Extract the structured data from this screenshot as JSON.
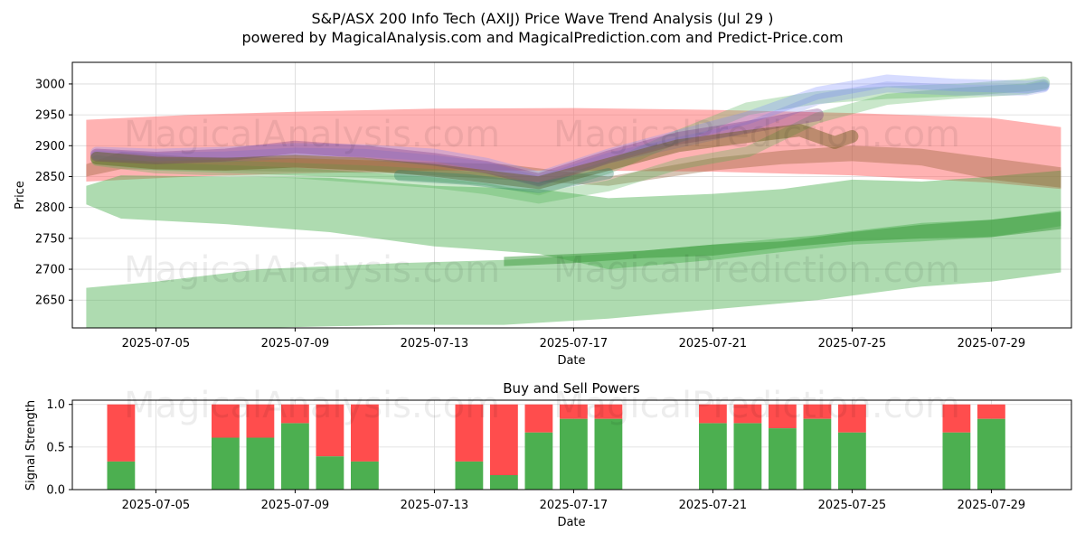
{
  "chart_data": [
    {
      "type": "area",
      "title": "S&P/ASX 200 Info Tech (AXIJ) Price Wave Trend Analysis (Jul 29 )",
      "subtitle": "powered by MagicalAnalysis.com and MagicalPrediction.com and Predict-Price.com",
      "xlabel": "Date",
      "ylabel": "Price",
      "ylim": [
        2605,
        3035
      ],
      "xlim_days": [
        -1.4,
        27.3
      ],
      "x_start_date": "2025-07-04",
      "x_tick_labels": [
        "2025-07-05",
        "2025-07-09",
        "2025-07-13",
        "2025-07-17",
        "2025-07-21",
        "2025-07-25",
        "2025-07-29"
      ],
      "x_tick_days": [
        1,
        5,
        9,
        13,
        17,
        21,
        25
      ],
      "y_ticks": [
        2650,
        2700,
        2750,
        2800,
        2850,
        2900,
        2950,
        3000
      ],
      "grid": true,
      "watermarks": [
        "MagicalAnalysis.com",
        "MagicalPrediction.com"
      ],
      "bands": [
        {
          "name": "red-wide-band",
          "color": "#ff6666",
          "opacity": 0.5,
          "x": [
            -1,
            2,
            5,
            9,
            13,
            17,
            21,
            25,
            27
          ],
          "upper": [
            2942,
            2950,
            2955,
            2960,
            2961,
            2958,
            2953,
            2945,
            2930
          ],
          "lower": [
            2842,
            2850,
            2855,
            2860,
            2860,
            2858,
            2852,
            2840,
            2830
          ]
        },
        {
          "name": "green-upper-band",
          "color": "#4caf50",
          "opacity": 0.45,
          "x": [
            -1,
            0,
            3,
            6,
            9,
            12,
            14,
            17,
            19,
            21,
            23,
            25,
            27
          ],
          "upper": [
            2835,
            2852,
            2850,
            2848,
            2835,
            2830,
            2815,
            2822,
            2830,
            2845,
            2842,
            2850,
            2860
          ],
          "lower": [
            2805,
            2782,
            2773,
            2760,
            2737,
            2725,
            2700,
            2715,
            2728,
            2740,
            2745,
            2752,
            2770
          ]
        },
        {
          "name": "green-lower-band",
          "color": "#4caf50",
          "opacity": 0.45,
          "x": [
            -1,
            1,
            4,
            8,
            11,
            14,
            17,
            20,
            23,
            25,
            27
          ],
          "upper": [
            2670,
            2680,
            2700,
            2710,
            2715,
            2725,
            2740,
            2755,
            2775,
            2780,
            2795
          ],
          "lower": [
            2605,
            2605,
            2605,
            2610,
            2610,
            2620,
            2635,
            2650,
            2672,
            2680,
            2695
          ]
        },
        {
          "name": "green-dark-band",
          "color": "#3a9a3a",
          "opacity": 0.5,
          "x": [
            11,
            13,
            15,
            17,
            19,
            21,
            23,
            25,
            27
          ],
          "upper": [
            2720,
            2725,
            2730,
            2740,
            2745,
            2760,
            2772,
            2780,
            2793
          ],
          "lower": [
            2705,
            2710,
            2718,
            2722,
            2735,
            2745,
            2750,
            2752,
            2765
          ]
        },
        {
          "name": "brown-band",
          "color": "#8b5a2b",
          "opacity": 0.35,
          "x": [
            -1,
            0,
            2,
            5,
            8,
            11,
            14,
            17,
            19,
            21,
            23,
            25,
            27
          ],
          "upper": [
            2870,
            2890,
            2882,
            2880,
            2875,
            2870,
            2850,
            2880,
            2892,
            2900,
            2895,
            2880,
            2865
          ],
          "lower": [
            2850,
            2862,
            2860,
            2858,
            2855,
            2845,
            2835,
            2860,
            2870,
            2875,
            2868,
            2845,
            2832
          ]
        }
      ],
      "wave_lines": [
        {
          "name": "green-wave-1",
          "color": "#66bb6a",
          "opacity": 0.35,
          "width": 14,
          "x": [
            -0.7,
            1,
            3,
            5,
            7,
            9,
            10.5,
            12,
            14,
            16,
            18,
            20,
            22,
            24,
            26,
            26.5
          ],
          "y": [
            2880,
            2870,
            2866,
            2862,
            2858,
            2852,
            2846,
            2830,
            2865,
            2915,
            2960,
            2978,
            2986,
            2990,
            2998,
            3002
          ]
        },
        {
          "name": "green-wave-2",
          "color": "#4caf50",
          "opacity": 0.3,
          "width": 12,
          "x": [
            -0.7,
            1,
            3,
            5,
            7,
            9,
            10.5,
            12,
            14,
            16,
            18,
            20,
            22,
            24,
            26,
            26.5
          ],
          "y": [
            2876,
            2864,
            2860,
            2856,
            2848,
            2840,
            2830,
            2815,
            2835,
            2870,
            2890,
            2945,
            2975,
            2985,
            2992,
            2998
          ]
        },
        {
          "name": "blue-wave-1",
          "color": "#7b8cff",
          "opacity": 0.3,
          "width": 14,
          "x": [
            -0.7,
            1,
            3,
            5,
            7,
            9,
            10.5,
            12,
            14,
            16,
            18,
            20,
            22,
            24,
            26,
            26.5
          ],
          "y": [
            2888,
            2885,
            2888,
            2894,
            2892,
            2885,
            2870,
            2848,
            2885,
            2915,
            2945,
            2985,
            3005,
            2998,
            2995,
            2998
          ]
        },
        {
          "name": "blue-wave-2",
          "color": "#6e7fe6",
          "opacity": 0.25,
          "width": 12,
          "x": [
            -0.7,
            1,
            3,
            5,
            7,
            9,
            10.5,
            12,
            14,
            16,
            18,
            20,
            22,
            24,
            26,
            26.5
          ],
          "y": [
            2884,
            2880,
            2882,
            2888,
            2886,
            2876,
            2865,
            2842,
            2880,
            2905,
            2930,
            2975,
            2995,
            2990,
            2990,
            2995
          ]
        },
        {
          "name": "purple-wave",
          "color": "#7a3a8a",
          "opacity": 0.35,
          "width": 14,
          "x": [
            -0.7,
            1,
            3,
            5,
            7,
            9,
            10.5,
            12,
            14,
            16,
            18,
            20
          ],
          "y": [
            2885,
            2880,
            2885,
            2898,
            2890,
            2878,
            2865,
            2845,
            2882,
            2912,
            2930,
            2950
          ]
        },
        {
          "name": "brown-wave",
          "color": "#6b5a1a",
          "opacity": 0.45,
          "width": 14,
          "x": [
            -0.7,
            1,
            3,
            5,
            7,
            9,
            10.5,
            12,
            14,
            16,
            18,
            19.5,
            20.5,
            21
          ],
          "y": [
            2880,
            2872,
            2870,
            2875,
            2870,
            2860,
            2850,
            2840,
            2870,
            2900,
            2915,
            2925,
            2905,
            2915
          ]
        },
        {
          "name": "teal-wave",
          "color": "#2e7d6a",
          "opacity": 0.35,
          "width": 12,
          "x": [
            8,
            10,
            12,
            14
          ],
          "y": [
            2852,
            2845,
            2832,
            2855
          ]
        }
      ]
    },
    {
      "type": "bar",
      "title": "Buy and Sell Powers",
      "xlabel": "Date",
      "ylabel": "Signal Strength",
      "ylim": [
        0,
        1.05
      ],
      "xlim_days": [
        -1.4,
        27.3
      ],
      "x_start_date": "2025-07-04",
      "x_tick_labels": [
        "2025-07-05",
        "2025-07-09",
        "2025-07-13",
        "2025-07-17",
        "2025-07-21",
        "2025-07-25",
        "2025-07-29"
      ],
      "x_tick_days": [
        1,
        5,
        9,
        13,
        17,
        21,
        25
      ],
      "y_tick_labels": [
        "0.0",
        "0.5",
        "1.0"
      ],
      "y_ticks": [
        0,
        0.5,
        1.0
      ],
      "grid": true,
      "series": [
        {
          "name": "Buy",
          "color": "#4caf50"
        },
        {
          "name": "Sell",
          "color": "#ff4d4d"
        }
      ],
      "bars": [
        {
          "date": "2025-07-04",
          "day": 0,
          "buy": 0.33
        },
        {
          "date": "2025-07-07",
          "day": 3,
          "buy": 0.61
        },
        {
          "date": "2025-07-08",
          "day": 4,
          "buy": 0.61
        },
        {
          "date": "2025-07-09",
          "day": 5,
          "buy": 0.78
        },
        {
          "date": "2025-07-10",
          "day": 6,
          "buy": 0.39
        },
        {
          "date": "2025-07-11",
          "day": 7,
          "buy": 0.33
        },
        {
          "date": "2025-07-14",
          "day": 10,
          "buy": 0.33
        },
        {
          "date": "2025-07-15",
          "day": 11,
          "buy": 0.17
        },
        {
          "date": "2025-07-16",
          "day": 12,
          "buy": 0.67
        },
        {
          "date": "2025-07-17",
          "day": 13,
          "buy": 0.83
        },
        {
          "date": "2025-07-18",
          "day": 14,
          "buy": 0.83
        },
        {
          "date": "2025-07-21",
          "day": 17,
          "buy": 0.78
        },
        {
          "date": "2025-07-22",
          "day": 18,
          "buy": 0.78
        },
        {
          "date": "2025-07-23",
          "day": 19,
          "buy": 0.72
        },
        {
          "date": "2025-07-24",
          "day": 20,
          "buy": 0.83
        },
        {
          "date": "2025-07-25",
          "day": 21,
          "buy": 0.67
        },
        {
          "date": "2025-07-28",
          "day": 24,
          "buy": 0.67
        },
        {
          "date": "2025-07-29",
          "day": 25,
          "buy": 0.83
        }
      ],
      "watermarks": [
        "MagicalAnalysis.com",
        "MagicalPrediction.com"
      ]
    }
  ]
}
